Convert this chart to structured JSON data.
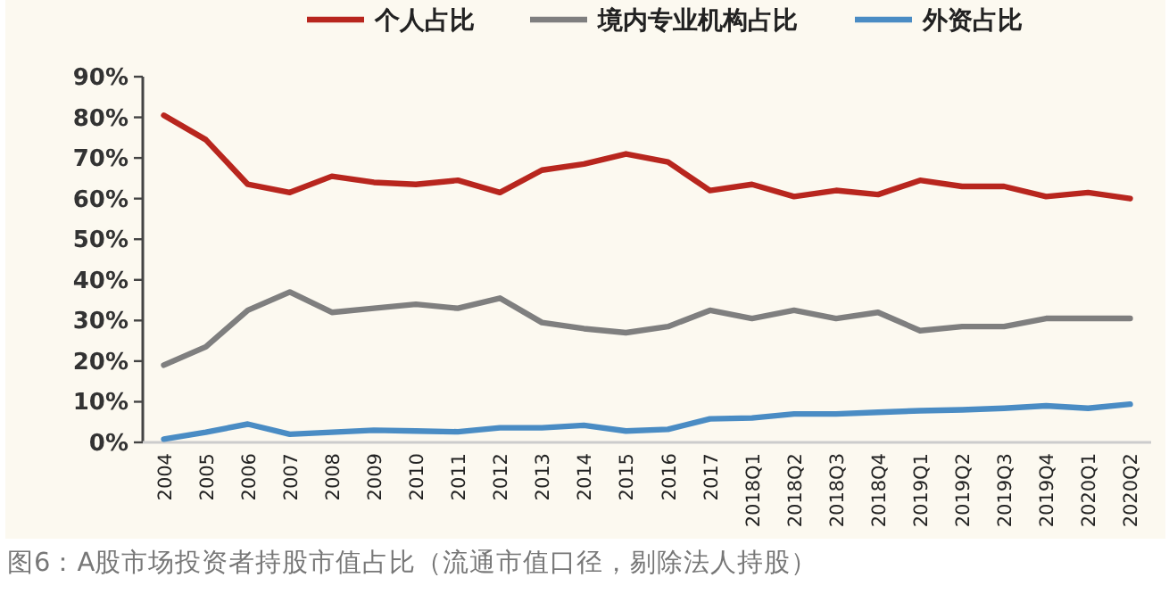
{
  "chart_data": {
    "type": "line",
    "categories": [
      "2004",
      "2005",
      "2006",
      "2007",
      "2008",
      "2009",
      "2010",
      "2011",
      "2012",
      "2013",
      "2014",
      "2015",
      "2016",
      "2017",
      "2018Q1",
      "2018Q2",
      "2018Q3",
      "2018Q4",
      "2019Q1",
      "2019Q2",
      "2019Q3",
      "2019Q4",
      "2020Q1",
      "2020Q2"
    ],
    "series": [
      {
        "name": "个人占比",
        "color": "#b8261e",
        "values": [
          80.5,
          74.5,
          63.5,
          61.5,
          65.5,
          64,
          63.5,
          64.5,
          61.5,
          67,
          68.5,
          71,
          69,
          62,
          63.5,
          60.5,
          62,
          61,
          64.5,
          63,
          63,
          60.5,
          61.5,
          60
        ]
      },
      {
        "name": "境内专业机构占比",
        "color": "#7f7f7f",
        "values": [
          19,
          23.5,
          32.5,
          37,
          32,
          33,
          34,
          33,
          35.5,
          29.5,
          28,
          27,
          28.5,
          32.5,
          30.5,
          32.5,
          30.5,
          32,
          27.5,
          28.5,
          28.5,
          30.5,
          30.5,
          30.5
        ]
      },
      {
        "name": "外资占比",
        "color": "#4a8cc4",
        "values": [
          0.8,
          2.5,
          4.5,
          2,
          2.5,
          3,
          2.8,
          2.6,
          3.6,
          3.6,
          4.2,
          2.8,
          3.2,
          5.8,
          6,
          7,
          7,
          7.4,
          7.8,
          8,
          8.4,
          9,
          8.4,
          9.4
        ]
      }
    ],
    "ylim": [
      0,
      90
    ],
    "yticks": [
      {
        "value": 0,
        "label": "0%"
      },
      {
        "value": 10,
        "label": "10%"
      },
      {
        "value": 20,
        "label": "20%"
      },
      {
        "value": 30,
        "label": "30%"
      },
      {
        "value": 40,
        "label": "40%"
      },
      {
        "value": 50,
        "label": "50%"
      },
      {
        "value": 60,
        "label": "60%"
      },
      {
        "value": 70,
        "label": "70%"
      },
      {
        "value": 80,
        "label": "80%"
      },
      {
        "value": 90,
        "label": "90%"
      }
    ],
    "legend": "top",
    "grid": false,
    "marker": "none",
    "line_style": "solid",
    "annotations": [
      "图6：A股市场投资者持股市值占比（流通市值口径，剔除法人持股）"
    ]
  }
}
